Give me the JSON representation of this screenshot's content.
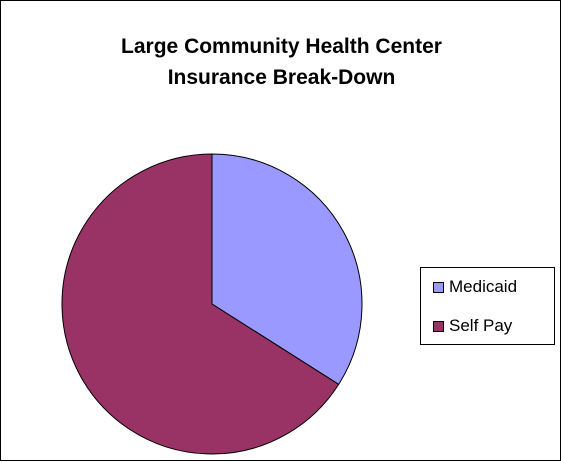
{
  "chart_data": {
    "type": "pie",
    "title": "Large Community Health Center Insurance Break-Down",
    "title_lines": [
      "Large Community Health Center",
      "Insurance Break-Down"
    ],
    "categories": [
      "Medicaid",
      "Self Pay"
    ],
    "values": [
      34,
      66
    ],
    "colors": [
      "#9999ff",
      "#993366"
    ],
    "start_angle_deg": 0,
    "direction": "clockwise",
    "legend": {
      "placement": "right",
      "items": [
        {
          "label": "Medicaid",
          "color": "#9999ff"
        },
        {
          "label": "Self Pay",
          "color": "#993366"
        }
      ]
    }
  }
}
